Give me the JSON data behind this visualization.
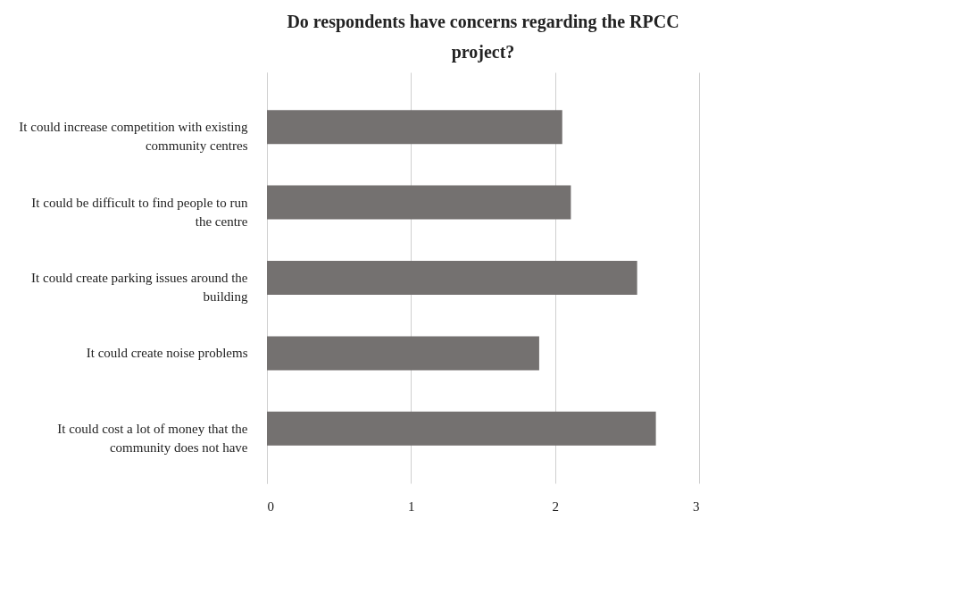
{
  "chart_data": {
    "type": "bar",
    "orientation": "horizontal",
    "title": "Do respondents have concerns regarding the RPCC project?",
    "categories": [
      "It could increase competition with existing community centres",
      "It could be difficult to find people to run the centre",
      "It could create parking issues around the building",
      "It could create noise problems",
      "It could cost a lot of money that the community does not have"
    ],
    "values": [
      2.05,
      2.11,
      2.57,
      1.89,
      2.7
    ],
    "color": "#747170",
    "xlim": [
      0,
      3
    ],
    "xticks": [
      0,
      1,
      2,
      3
    ],
    "grid": "x"
  }
}
